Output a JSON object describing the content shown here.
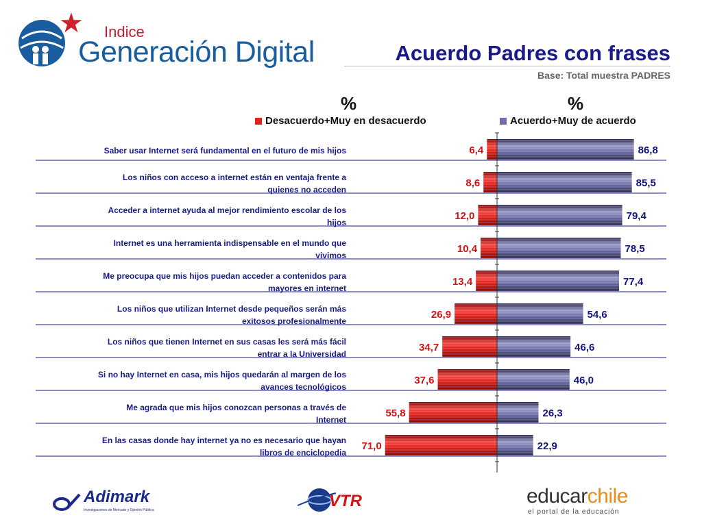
{
  "header": {
    "logo_top": "Indice",
    "logo_main": "Generación Digital",
    "title": "Acuerdo Padres con frases",
    "subtitle": "Base: Total muestra PADRES"
  },
  "colors": {
    "title": "#1a1a8c",
    "negative_bar": "#e3221d",
    "positive_bar": "#6e6ea8",
    "negative_label": "#d01515",
    "positive_label": "#14147a",
    "row_label": "#1a1a8c"
  },
  "chart_data": {
    "type": "bar",
    "orientation": "horizontal-diverging",
    "title": "Acuerdo Padres con frases",
    "subtitle": "Base: Total muestra PADRES",
    "column_headers": [
      "%",
      "%"
    ],
    "legend_position": "top",
    "categories": [
      "Saber usar Internet será fundamental en el futuro de mis hijos",
      "Los niños con acceso a internet están en ventaja frente a quienes no acceden",
      "Acceder a internet ayuda al mejor rendimiento escolar de los hijos",
      "Internet es una herramienta indispensable en el mundo que vivimos",
      "Me preocupa que mis hijos puedan acceder a contenidos para mayores en internet",
      "Los niños que utilizan Internet desde pequeños serán más exitosos profesionalmente",
      "Los niños que tienen Internet en sus casas les será más fácil entrar a la Universidad",
      "Si no hay Internet en casa, mis hijos quedarán al margen de los avances tecnológicos",
      "Me agrada que mis hijos conozcan personas a través de Internet",
      "En las casas donde hay internet ya no es necesario que hayan libros  de enciclopedia"
    ],
    "category_lines": [
      [
        "Saber usar Internet será fundamental en el futuro de mis hijos"
      ],
      [
        "Los niños con acceso a internet están en ventaja frente a",
        "quienes no acceden"
      ],
      [
        "Acceder a internet ayuda al mejor rendimiento escolar de los",
        "hijos"
      ],
      [
        "Internet es una herramienta indispensable en el mundo que",
        "vivimos"
      ],
      [
        "Me preocupa que mis hijos puedan acceder a contenidos para",
        "mayores en internet"
      ],
      [
        "Los niños que utilizan Internet desde pequeños serán más",
        "exitosos profesionalmente"
      ],
      [
        "Los niños que tienen Internet en sus casas les será más fácil",
        "entrar a la Universidad"
      ],
      [
        "Si no hay Internet en casa, mis hijos quedarán al margen de los",
        "avances tecnológicos"
      ],
      [
        "Me agrada que mis hijos conozcan personas a través de",
        "Internet"
      ],
      [
        "En las casas donde hay internet ya no es necesario que hayan",
        "libros  de enciclopedia"
      ]
    ],
    "series": [
      {
        "name": "Desacuerdo+Muy en desacuerdo",
        "values": [
          6.4,
          8.6,
          12.0,
          10.4,
          13.4,
          26.9,
          34.7,
          37.6,
          55.8,
          71.0
        ],
        "labels": [
          "6,4",
          "8,6",
          "12,0",
          "10,4",
          "13,4",
          "26,9",
          "34,7",
          "37,6",
          "55,8",
          "71,0"
        ]
      },
      {
        "name": "Acuerdo+Muy de acuerdo",
        "values": [
          86.8,
          85.5,
          79.4,
          78.5,
          77.4,
          54.6,
          46.6,
          46.0,
          26.3,
          22.9
        ],
        "labels": [
          "86,8",
          "85,5",
          "79,4",
          "78,5",
          "77,4",
          "54,6",
          "46,6",
          "46,0",
          "26,3",
          "22,9"
        ]
      }
    ]
  },
  "footer": {
    "adimark_name": "Adimark",
    "adimark_tag": "Investigaciones de Mercado y Opinión Pública",
    "vtr_name": "VTR",
    "educar_main": "educar",
    "educar_accent": "chile",
    "educar_tag": "el portal de la educación"
  }
}
